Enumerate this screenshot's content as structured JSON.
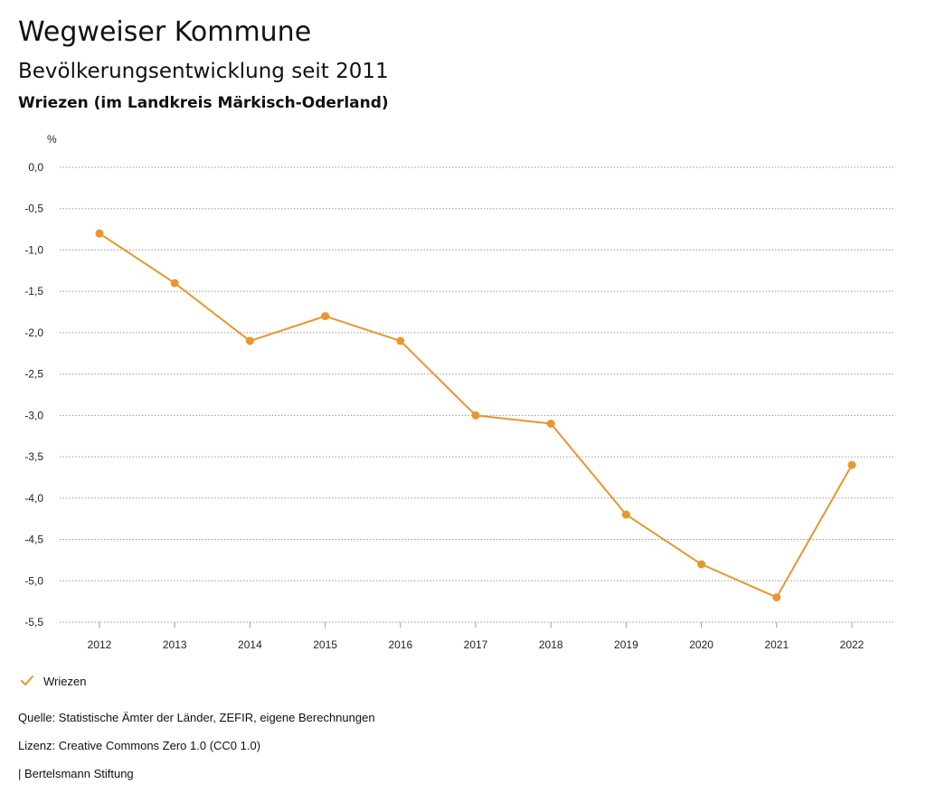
{
  "header": {
    "title": "Wegweiser Kommune",
    "subtitle": "Bevölkerungsentwicklung seit 2011",
    "region": "Wriezen (im Landkreis Märkisch-Oderland)"
  },
  "chart_data": {
    "type": "line",
    "ylabel": "%",
    "ylim": [
      -5.5,
      0
    ],
    "yticks": [
      "0,0",
      "-0,5",
      "-1,0",
      "-1,5",
      "-2,0",
      "-2,5",
      "-3,0",
      "-3,5",
      "-4,0",
      "-4,5",
      "-5,0",
      "-5,5"
    ],
    "categories": [
      "2012",
      "2013",
      "2014",
      "2015",
      "2016",
      "2017",
      "2018",
      "2019",
      "2020",
      "2021",
      "2022"
    ],
    "grid": true,
    "legend_position": "bottom-left",
    "series": [
      {
        "name": "Wriezen",
        "color": "#e8972f",
        "values": [
          -0.8,
          -1.4,
          -2.1,
          -1.8,
          -2.1,
          -3.0,
          -3.1,
          -4.2,
          -4.8,
          -5.2,
          -3.6
        ]
      }
    ]
  },
  "legend": {
    "label": "Wriezen",
    "icon": "check-icon"
  },
  "footer": {
    "source": "Quelle: Statistische Ämter der Länder, ZEFIR, eigene Berechnungen",
    "license": "Lizenz: Creative Commons Zero 1.0 (CC0 1.0)",
    "brand": "| Bertelsmann Stiftung"
  }
}
